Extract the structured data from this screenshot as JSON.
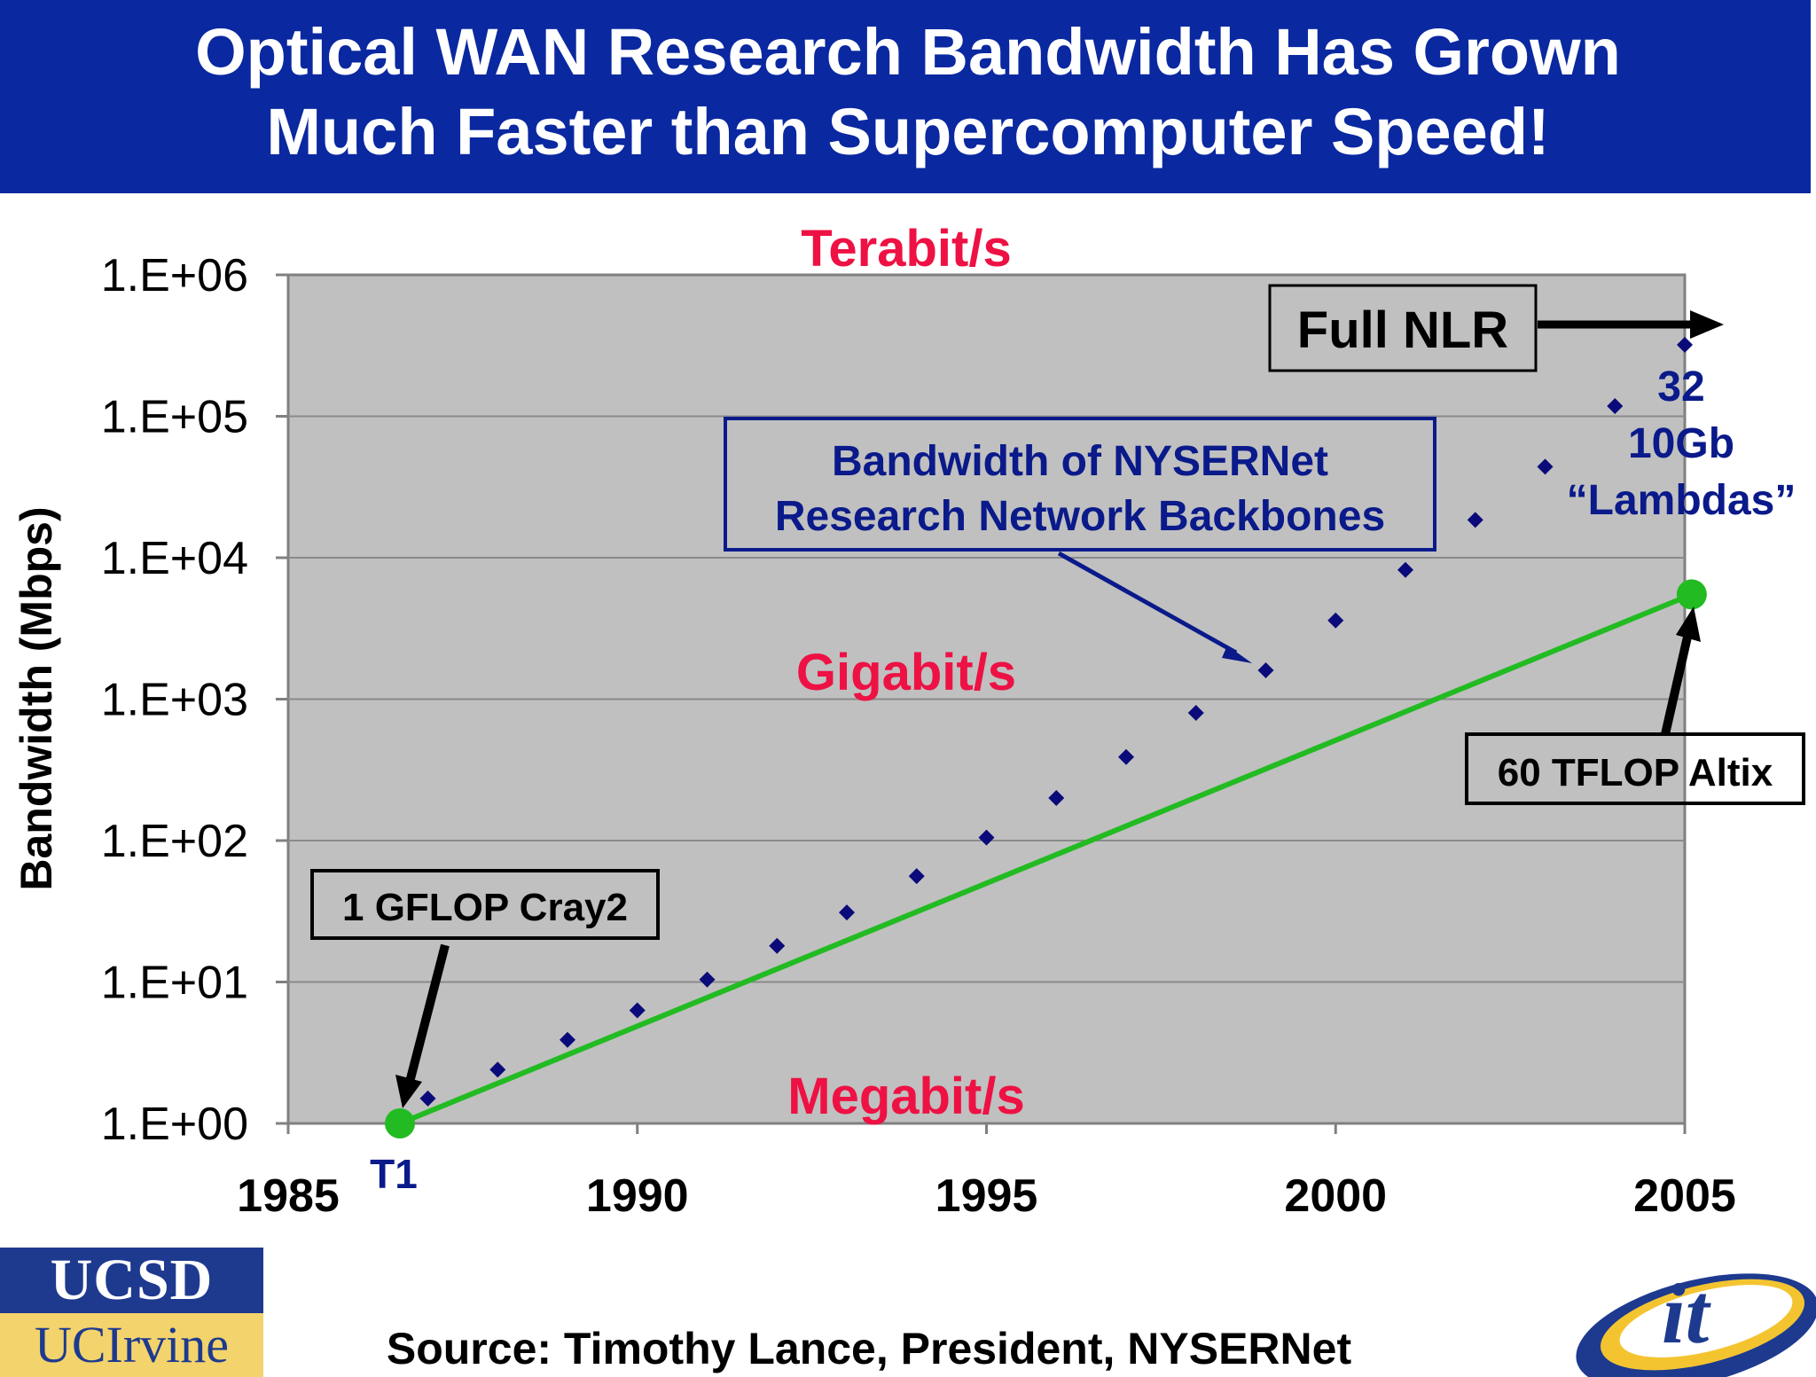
{
  "title": {
    "line1": "Optical WAN Research Bandwidth Has Grown",
    "line2": "Much Faster than Supercomputer Speed!"
  },
  "source": "Source: Timothy Lance, President, NYSERNet",
  "logos": {
    "ucsd": "UCSD",
    "uci": "UCIrvine",
    "it2": "it"
  },
  "colors": {
    "title_bg": "#0a28a0",
    "plot_bg": "#c0c0c0",
    "series_marker": "#0a0a7a",
    "supercomputer_line": "#22bb22",
    "speed_labels": "#ee1144",
    "annotation_blue": "#0a1a8a"
  },
  "chart_data": {
    "type": "scatter",
    "title": "",
    "xlabel": "",
    "ylabel": "Bandwidth (Mbps)",
    "yscale": "log",
    "xlim": [
      1985,
      2005
    ],
    "ylim": [
      1,
      1000000
    ],
    "grid": true,
    "x_ticks": [
      "1985",
      "1990",
      "1995",
      "2000",
      "2005"
    ],
    "y_ticks": [
      "1.E+00",
      "1.E+01",
      "1.E+02",
      "1.E+03",
      "1.E+04",
      "1.E+05",
      "1.E+06"
    ],
    "series": [
      {
        "kind": "markers",
        "points": [
          [
            1987,
            1.5
          ],
          [
            1988,
            2.4
          ],
          [
            1989,
            3.9
          ],
          [
            1990,
            6.3
          ],
          [
            1991,
            10.4
          ],
          [
            1992,
            18
          ],
          [
            1993,
            31
          ],
          [
            1994,
            56
          ],
          [
            1995,
            105
          ],
          [
            1996,
            200
          ],
          [
            1997,
            390
          ],
          [
            1998,
            800
          ],
          [
            1999,
            1600
          ],
          [
            2000,
            3600
          ],
          [
            2001,
            8200
          ],
          [
            2002,
            18500
          ],
          [
            2003,
            44000
          ],
          [
            2004,
            118000
          ],
          [
            2005,
            320000
          ]
        ]
      },
      {
        "kind": "line",
        "points": [
          [
            1986.6,
            1
          ],
          [
            2005.1,
            5500
          ]
        ]
      }
    ],
    "speed_labels": {
      "terabit": "Terabit/s",
      "gigabit": "Gigabit/s",
      "megabit": "Megabit/s"
    },
    "annotations": {
      "t1": "T1",
      "cray": "1 GFLOP Cray2",
      "altix": "60 TFLOP Altix",
      "nysernet_line1": "Bandwidth of NYSERNet",
      "nysernet_line2": "Research Network Backbones",
      "full_nlr": "Full NLR",
      "lambdas_line1": "32",
      "lambdas_line2": "10Gb",
      "lambdas_line3": "“Lambdas”"
    }
  }
}
